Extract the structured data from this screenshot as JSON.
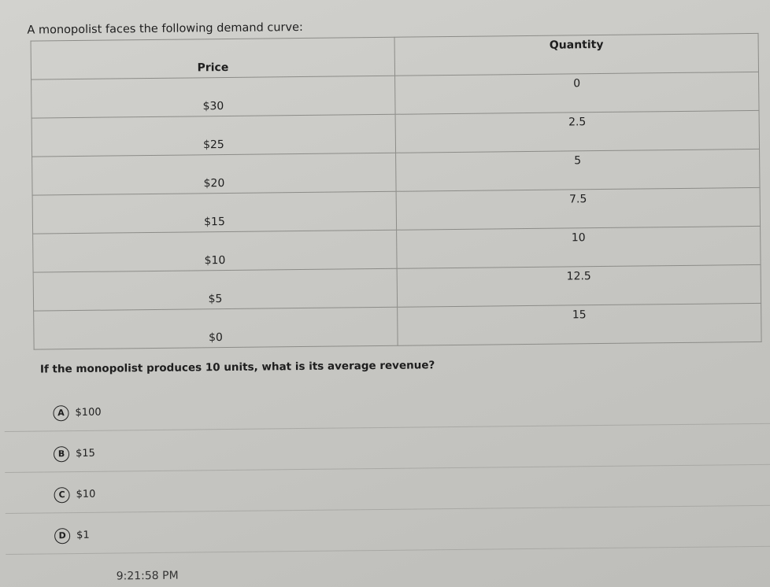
{
  "prompt": "A monopolist faces the following demand curve:",
  "table": {
    "headers": [
      "Price",
      "Quantity"
    ],
    "rows": [
      [
        "$30",
        "0"
      ],
      [
        "$25",
        "2.5"
      ],
      [
        "$20",
        "5"
      ],
      [
        "$15",
        "7.5"
      ],
      [
        "$10",
        "10"
      ],
      [
        "$5",
        "12.5"
      ],
      [
        "$0",
        "15"
      ]
    ]
  },
  "question": "If the monopolist produces 10 units, what is its average revenue?",
  "options": [
    {
      "letter": "A",
      "text": "$100"
    },
    {
      "letter": "B",
      "text": "$15"
    },
    {
      "letter": "C",
      "text": "$10"
    },
    {
      "letter": "D",
      "text": "$1"
    }
  ],
  "timestamp": "9:21:58 PM"
}
